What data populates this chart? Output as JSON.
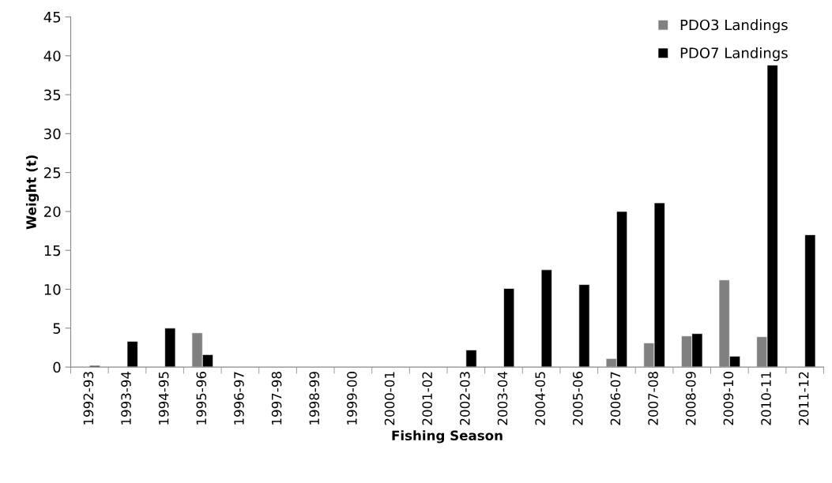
{
  "chart_data": {
    "type": "bar",
    "xlabel": "Fishing Season",
    "ylabel": "Weight (t)",
    "categories": [
      "1992-93",
      "1993-94",
      "1994-95",
      "1995-96",
      "1996-97",
      "1997-98",
      "1998-99",
      "1999-00",
      "2000-01",
      "2001-02",
      "2002-03",
      "2003-04",
      "2004-05",
      "2005-06",
      "2006-07",
      "2007-08",
      "2008-09",
      "2009-10",
      "2010-11",
      "2011-12"
    ],
    "series": [
      {
        "name": "PDO3 Landings",
        "color": "#808080",
        "values": [
          null,
          null,
          null,
          4.4,
          null,
          null,
          null,
          null,
          null,
          null,
          null,
          null,
          null,
          null,
          1.1,
          3.1,
          4.0,
          11.2,
          3.9,
          null
        ]
      },
      {
        "name": "PDO7 Landings",
        "color": "#000000",
        "values": [
          0.2,
          3.3,
          5.0,
          1.6,
          null,
          null,
          null,
          null,
          null,
          null,
          2.2,
          10.1,
          12.5,
          10.6,
          20.0,
          21.1,
          4.3,
          1.4,
          38.8,
          17.0
        ]
      }
    ],
    "ylim": [
      0,
      45
    ],
    "yticks": [
      0,
      5,
      10,
      15,
      20,
      25,
      30,
      35,
      40,
      45
    ],
    "grid": false,
    "legend": "top right"
  }
}
